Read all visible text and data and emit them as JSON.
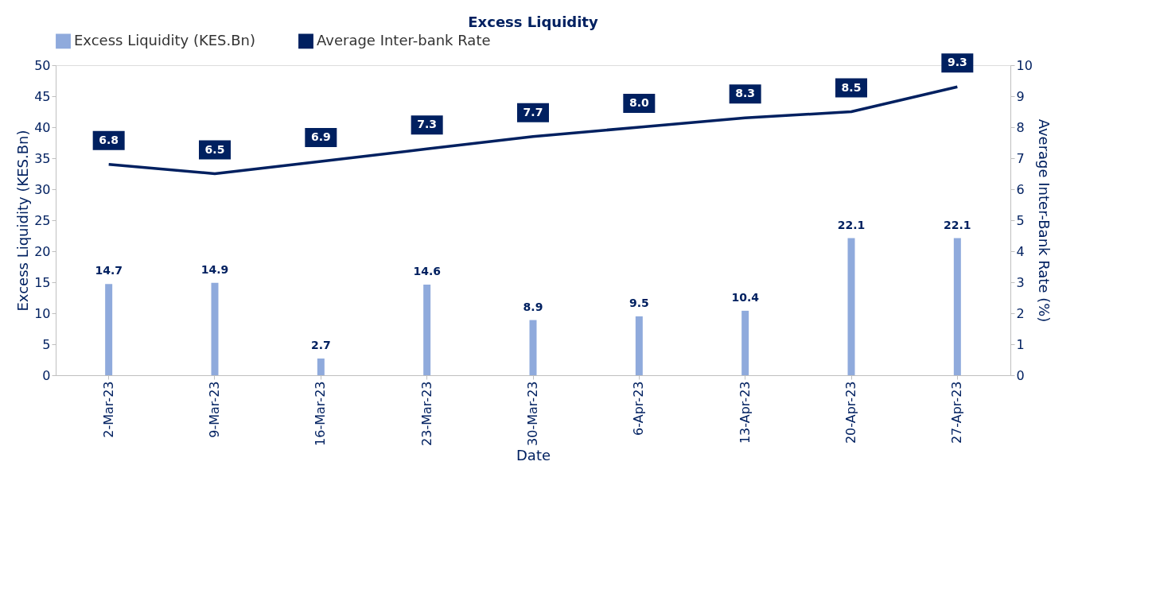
{
  "chart_data": {
    "type": "bar",
    "title": "Excess Liquidity",
    "xlabel": "Date",
    "ylabel": "Excess Liquidity (KES.Bn)",
    "y2label": "Average Inter-Bank Rate (%)",
    "categories": [
      "2-Mar-23",
      "9-Mar-23",
      "16-Mar-23",
      "23-Mar-23",
      "30-Mar-23",
      "6-Apr-23",
      "13-Apr-23",
      "20-Apr-23",
      "27-Apr-23"
    ],
    "series": [
      {
        "name": "Excess Liquidity (KES.Bn)",
        "color": "#8faadc",
        "values": [
          14.7,
          14.9,
          2.7,
          14.6,
          8.9,
          9.5,
          10.4,
          22.1,
          22.1
        ]
      },
      {
        "name": "Average Inter-bank Rate",
        "type": "line",
        "axis": "y2",
        "color": "#002060",
        "values": [
          6.8,
          6.5,
          6.9,
          7.3,
          7.7,
          8.0,
          8.3,
          8.5,
          9.3
        ],
        "value_labels": [
          "6.8",
          "6.5",
          "6.9",
          "7.3",
          "7.7",
          "8.0",
          "8.3",
          "8.5",
          "9.3"
        ]
      }
    ],
    "ylim": [
      0,
      50
    ],
    "yticks": [
      0,
      5,
      10,
      15,
      20,
      25,
      30,
      35,
      40,
      45,
      50
    ],
    "y2lim": [
      0,
      10
    ],
    "y2ticks": [
      0,
      1,
      2,
      3,
      4,
      5,
      6,
      7,
      8,
      9,
      10
    ],
    "data_labels": true,
    "grid": false,
    "legend": "top",
    "marker": "none",
    "line_style": "solid"
  }
}
